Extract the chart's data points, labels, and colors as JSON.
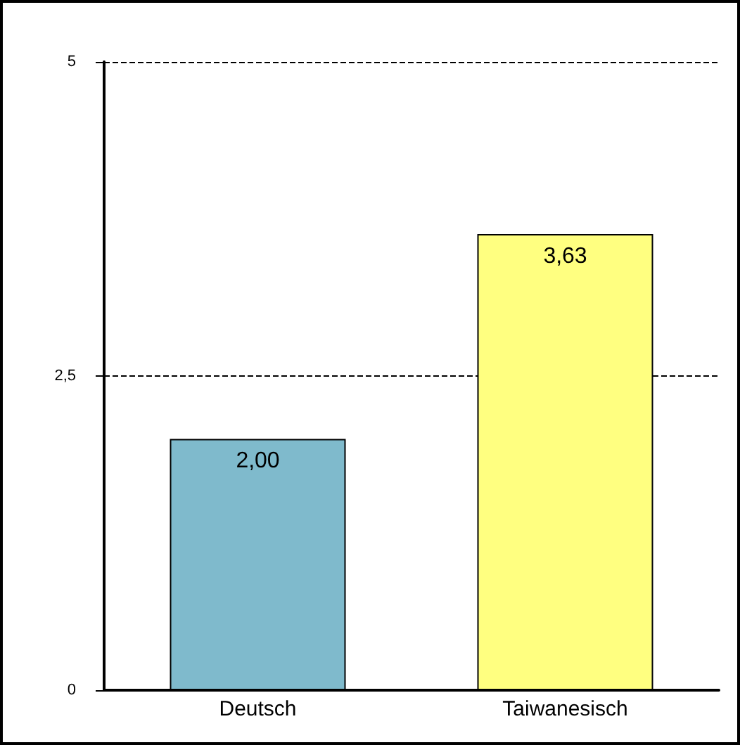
{
  "chart_data": {
    "type": "bar",
    "categories": [
      "Deutsch",
      "Taiwanesisch"
    ],
    "values": [
      2.0,
      3.63
    ],
    "colors": [
      "#7fbacc",
      "#ffff80"
    ],
    "value_labels": [
      "2,00",
      "3,63"
    ],
    "ylim": [
      0,
      5
    ],
    "yticks": [
      0,
      {
        "value": 2.5,
        "label": "2,5"
      },
      5
    ],
    "grid": "y"
  }
}
